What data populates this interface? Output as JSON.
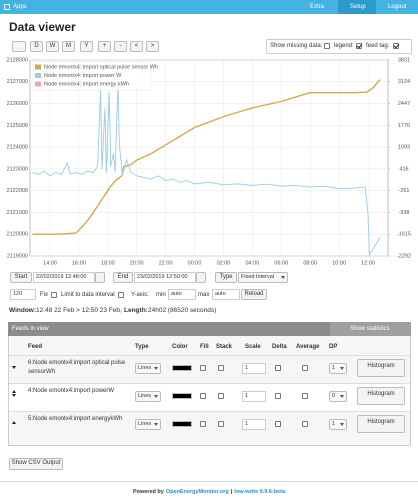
{
  "nav": {
    "brand": "Apps",
    "items": [
      "Extra",
      "Setup",
      "Logout"
    ]
  },
  "title": "Data viewer",
  "toolbar": {
    "buttons": [
      "D",
      "W",
      "M",
      "Y",
      "+",
      "-",
      "<",
      ">"
    ],
    "show": "Show",
    "missing": "missing data:",
    "legend": "legend:",
    "feed_tag": "feed tag:"
  },
  "chart_data": {
    "type": "line",
    "xlim": [
      12.62,
      37.38
    ],
    "xticks": [
      {
        "value": 14,
        "label": "14:00"
      },
      {
        "value": 16,
        "label": "16:00"
      },
      {
        "value": 18,
        "label": "18:00"
      },
      {
        "value": 20,
        "label": "20:00"
      },
      {
        "value": 22,
        "label": "22:00"
      },
      {
        "value": 24,
        "label": "00:00"
      },
      {
        "value": 26,
        "label": "02:00"
      },
      {
        "value": 28,
        "label": "04:00"
      },
      {
        "value": 30,
        "label": "06:00"
      },
      {
        "value": 32,
        "label": "08:00"
      },
      {
        "value": 34,
        "label": "10:00"
      },
      {
        "value": 36,
        "label": "12:00"
      }
    ],
    "ylim": [
      2119000,
      2128000
    ],
    "yticks": [
      2119000,
      2120000,
      2121000,
      2122000,
      2123000,
      2124000,
      2125000,
      2126000,
      2127000,
      2128000
    ],
    "y2lim": [
      -2292,
      3801
    ],
    "y2ticks": [
      -2292,
      -1615,
      -938,
      -261,
      416,
      1093,
      1770,
      2447,
      3124,
      3801
    ],
    "grid": true,
    "legend": "top-left",
    "series": [
      {
        "name": "Node emontx4: import optical pulse sensor Wh",
        "color": "#d4a94a",
        "axis": "y",
        "x": [
          12.8,
          14,
          15,
          15.8,
          16.3,
          16.8,
          17.3,
          17.8,
          18.2,
          18.6,
          19.0,
          19.1,
          19.6,
          20,
          21,
          22,
          23,
          24,
          26,
          28,
          30,
          31.5,
          32,
          34,
          35,
          35.9,
          36.3,
          36.83
        ],
        "values": [
          2120000,
          2120000,
          2120010,
          2120050,
          2120400,
          2120800,
          2121300,
          2121800,
          2122200,
          2122500,
          2122700,
          2123100,
          2123200,
          2123400,
          2123700,
          2124100,
          2124500,
          2124900,
          2125400,
          2125800,
          2126100,
          2126400,
          2126500,
          2126500,
          2126500,
          2126520,
          2126700,
          2127100
        ]
      },
      {
        "name": "Node emontx4: import power W",
        "color": "#9ccbe9",
        "axis": "y2",
        "x": [
          12.8,
          13.2,
          13.6,
          14,
          14.4,
          14.8,
          15.2,
          15.4,
          15.8,
          16.2,
          16.6,
          17,
          17.3,
          17.5,
          17.6,
          17.8,
          17.9,
          18.1,
          18.2,
          18.4,
          18.5,
          18.7,
          18.8,
          19,
          19.3,
          19.6,
          20,
          20.5,
          21,
          21.5,
          22,
          22.5,
          23,
          23.5,
          24,
          25,
          26,
          27,
          28,
          29,
          30,
          31,
          32,
          33,
          34,
          35,
          35.8,
          36,
          36.1,
          36.3,
          36.6,
          36.83
        ],
        "values": [
          300,
          250,
          350,
          200,
          300,
          250,
          600,
          250,
          300,
          250,
          350,
          300,
          500,
          2900,
          400,
          2300,
          300,
          2800,
          500,
          900,
          300,
          3000,
          1200,
          200,
          700,
          300,
          200,
          150,
          100,
          200,
          50,
          100,
          0,
          50,
          -50,
          0,
          -80,
          -50,
          -100,
          -60,
          -120,
          -100,
          -150,
          -120,
          -200,
          -180,
          -150,
          -1000,
          -2250,
          -2100,
          -1900,
          -1700
        ]
      },
      {
        "name": "Node emontx4: import energy kWh",
        "color": "#f4a5a5"
      }
    ]
  },
  "controls": {
    "start": "Start",
    "start_value": "22/02/2019 12:48:00",
    "end": "End",
    "end_value": "23/02/2019 12:50:00",
    "type": "Type",
    "type_value": "Fixed Interval",
    "interval": "120",
    "fix": "Fix",
    "limit": "Limit to data interval",
    "yaxis": "Y-axis:",
    "min": "min",
    "min_value": "auto",
    "max": "max",
    "max_value": "auto",
    "reload": "Reload"
  },
  "window": {
    "label": "Window:",
    "text": "12:48 22 Feb > 12:50 23 Feb,",
    "length_label": "Length:",
    "length": "24h02 (86520 seconds)"
  },
  "feeds": {
    "title": "Feeds in view",
    "stats": "Show statistics",
    "columns": [
      "Feed",
      "Type",
      "Color",
      "Fill",
      "Stack",
      "Scale",
      "Delta",
      "Average",
      "DP"
    ],
    "rows": [
      {
        "name": "6:Node emontx4:import optical pulse sensorWh",
        "type": "Lines",
        "scale": "1",
        "dp": "1",
        "histogram": "Histogram"
      },
      {
        "name": "4:Node emontx4:import powerW",
        "type": "Lines",
        "scale": "1",
        "dp": "0",
        "histogram": "Histogram"
      },
      {
        "name": "5:Node emontx4:import energykWh",
        "type": "Lines",
        "scale": "1",
        "dp": "1",
        "histogram": "Histogram"
      }
    ]
  },
  "csv": "Show CSV Output",
  "footer": {
    "prefix": "Powered by",
    "link": "OpenEnergyMonitor.org",
    "sep": "|",
    "version": "low-write 9.9.6-beta"
  }
}
